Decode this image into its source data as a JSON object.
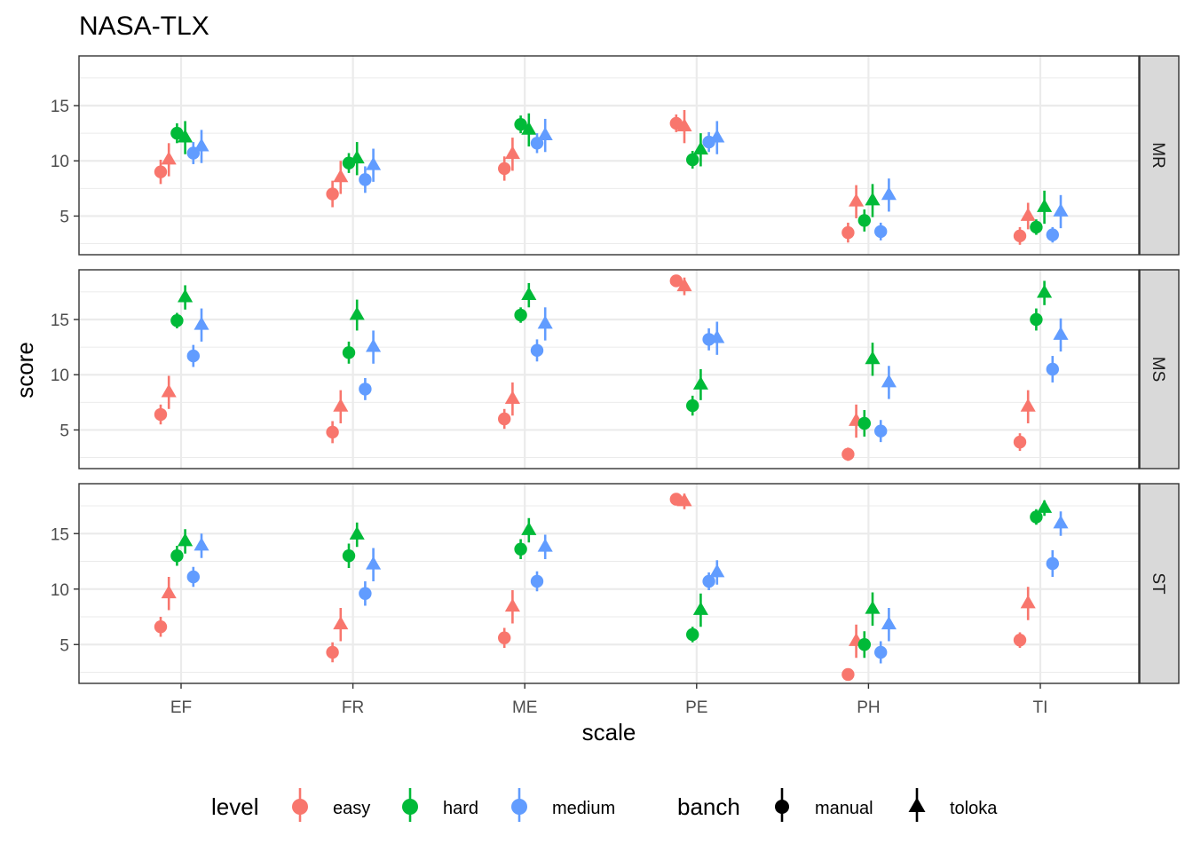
{
  "chart_data": {
    "type": "scatter",
    "title": "NASA-TLX",
    "xlabel": "scale",
    "ylabel": "score",
    "ylim": [
      1.5,
      19.5
    ],
    "y_ticks": [
      5,
      10,
      15
    ],
    "grid": true,
    "categories": [
      "EF",
      "FR",
      "ME",
      "PE",
      "PH",
      "TI"
    ],
    "facets": [
      "MR",
      "MS",
      "ST"
    ],
    "legend": {
      "position": "bottom",
      "level": {
        "title": "level",
        "entries": [
          {
            "label": "easy",
            "color": "#F8766D"
          },
          {
            "label": "hard",
            "color": "#00BA38"
          },
          {
            "label": "medium",
            "color": "#619CFF"
          }
        ]
      },
      "banch": {
        "title": "banch",
        "entries": [
          {
            "label": "manual",
            "shape": "circle"
          },
          {
            "label": "toloka",
            "shape": "triangle"
          }
        ]
      }
    },
    "series": [
      {
        "facet": "MR",
        "level": "easy",
        "banch": "manual",
        "y": [
          9.0,
          7.0,
          9.3,
          13.4,
          3.5,
          3.2
        ],
        "lo": [
          7.9,
          5.8,
          8.2,
          12.6,
          2.6,
          2.4
        ],
        "hi": [
          10.1,
          8.2,
          10.4,
          14.2,
          4.4,
          4.0
        ]
      },
      {
        "facet": "MR",
        "level": "easy",
        "banch": "toloka",
        "y": [
          10.1,
          8.5,
          10.6,
          13.1,
          6.3,
          5.0
        ],
        "lo": [
          8.6,
          7.0,
          9.1,
          11.6,
          4.8,
          3.8
        ],
        "hi": [
          11.6,
          10.0,
          12.1,
          14.6,
          7.8,
          6.2
        ]
      },
      {
        "facet": "MR",
        "level": "hard",
        "banch": "manual",
        "y": [
          12.5,
          9.8,
          13.3,
          10.1,
          4.6,
          4.0
        ],
        "lo": [
          11.6,
          8.9,
          12.5,
          9.3,
          3.6,
          3.3
        ],
        "hi": [
          13.4,
          10.7,
          14.1,
          10.9,
          5.6,
          4.7
        ]
      },
      {
        "facet": "MR",
        "level": "hard",
        "banch": "toloka",
        "y": [
          12.1,
          10.2,
          12.8,
          11.0,
          6.4,
          5.8
        ],
        "lo": [
          10.6,
          8.7,
          11.3,
          9.5,
          4.9,
          4.3
        ],
        "hi": [
          13.6,
          11.7,
          14.3,
          12.5,
          7.9,
          7.3
        ]
      },
      {
        "facet": "MR",
        "level": "medium",
        "banch": "manual",
        "y": [
          10.7,
          8.3,
          11.6,
          11.7,
          3.6,
          3.3
        ],
        "lo": [
          9.7,
          7.1,
          10.7,
          10.8,
          2.8,
          2.6
        ],
        "hi": [
          11.7,
          9.5,
          12.5,
          12.6,
          4.4,
          4.0
        ]
      },
      {
        "facet": "MR",
        "level": "medium",
        "banch": "toloka",
        "y": [
          11.3,
          9.6,
          12.3,
          12.1,
          6.9,
          5.4
        ],
        "lo": [
          9.8,
          8.1,
          10.8,
          10.6,
          5.4,
          3.9
        ],
        "hi": [
          12.8,
          11.1,
          13.8,
          13.6,
          8.4,
          6.9
        ]
      },
      {
        "facet": "MS",
        "level": "easy",
        "banch": "manual",
        "y": [
          6.4,
          4.8,
          6.0,
          18.5,
          2.8,
          3.9
        ],
        "lo": [
          5.5,
          3.8,
          5.1,
          18.1,
          2.2,
          3.1
        ],
        "hi": [
          7.3,
          5.8,
          6.9,
          18.9,
          3.4,
          4.7
        ]
      },
      {
        "facet": "MS",
        "level": "easy",
        "banch": "toloka",
        "y": [
          8.4,
          7.1,
          7.8,
          18.0,
          5.8,
          7.1
        ],
        "lo": [
          6.9,
          5.6,
          6.3,
          17.2,
          4.3,
          5.6
        ],
        "hi": [
          9.9,
          8.6,
          9.3,
          18.8,
          7.3,
          8.6
        ]
      },
      {
        "facet": "MS",
        "level": "hard",
        "banch": "manual",
        "y": [
          14.9,
          12.0,
          15.4,
          7.2,
          5.6,
          15.0
        ],
        "lo": [
          14.2,
          11.0,
          14.7,
          6.3,
          4.4,
          14.0
        ],
        "hi": [
          15.6,
          13.0,
          16.1,
          8.1,
          6.8,
          16.0
        ]
      },
      {
        "facet": "MS",
        "level": "hard",
        "banch": "toloka",
        "y": [
          17.0,
          15.4,
          17.2,
          9.1,
          11.4,
          17.4
        ],
        "lo": [
          15.9,
          14.0,
          16.1,
          7.7,
          9.9,
          16.3
        ],
        "hi": [
          18.1,
          16.8,
          18.3,
          10.5,
          12.9,
          18.5
        ]
      },
      {
        "facet": "MS",
        "level": "medium",
        "banch": "manual",
        "y": [
          11.7,
          8.7,
          12.2,
          13.2,
          4.9,
          10.5
        ],
        "lo": [
          10.7,
          7.7,
          11.2,
          12.2,
          3.9,
          9.3
        ],
        "hi": [
          12.7,
          9.7,
          13.2,
          14.2,
          5.9,
          11.7
        ]
      },
      {
        "facet": "MS",
        "level": "medium",
        "banch": "toloka",
        "y": [
          14.5,
          12.5,
          14.6,
          13.3,
          9.3,
          13.6
        ],
        "lo": [
          13.0,
          11.0,
          13.1,
          11.8,
          7.8,
          12.1
        ],
        "hi": [
          16.0,
          14.0,
          16.1,
          14.8,
          10.8,
          15.1
        ]
      },
      {
        "facet": "ST",
        "level": "easy",
        "banch": "manual",
        "y": [
          6.6,
          4.3,
          5.6,
          18.1,
          2.3,
          5.4
        ],
        "lo": [
          5.7,
          3.4,
          4.7,
          17.8,
          1.9,
          4.7
        ],
        "hi": [
          7.5,
          5.2,
          6.5,
          18.4,
          2.7,
          6.1
        ]
      },
      {
        "facet": "ST",
        "level": "easy",
        "banch": "toloka",
        "y": [
          9.6,
          6.8,
          8.4,
          17.9,
          5.3,
          8.7
        ],
        "lo": [
          8.1,
          5.3,
          6.9,
          17.2,
          3.8,
          7.2
        ],
        "hi": [
          11.1,
          8.3,
          9.9,
          18.6,
          6.8,
          10.2
        ]
      },
      {
        "facet": "ST",
        "level": "hard",
        "banch": "manual",
        "y": [
          13.0,
          13.0,
          13.6,
          5.9,
          5.0,
          16.5
        ],
        "lo": [
          12.1,
          11.9,
          12.7,
          5.2,
          3.8,
          15.8
        ],
        "hi": [
          13.9,
          14.1,
          14.5,
          6.6,
          6.2,
          17.2
        ]
      },
      {
        "facet": "ST",
        "level": "hard",
        "banch": "toloka",
        "y": [
          14.3,
          14.9,
          15.3,
          8.1,
          8.2,
          17.3
        ],
        "lo": [
          13.2,
          13.8,
          14.2,
          6.6,
          6.7,
          16.6
        ],
        "hi": [
          15.4,
          16.0,
          16.4,
          9.6,
          9.7,
          18.0
        ]
      },
      {
        "facet": "ST",
        "level": "medium",
        "banch": "manual",
        "y": [
          11.1,
          9.6,
          10.7,
          10.7,
          4.3,
          12.3
        ],
        "lo": [
          10.2,
          8.5,
          9.8,
          9.9,
          3.3,
          11.1
        ],
        "hi": [
          12.0,
          10.7,
          11.6,
          11.5,
          5.3,
          13.5
        ]
      },
      {
        "facet": "ST",
        "level": "medium",
        "banch": "toloka",
        "y": [
          13.9,
          12.2,
          13.8,
          11.5,
          6.8,
          15.9
        ],
        "lo": [
          12.8,
          10.7,
          12.7,
          10.4,
          5.3,
          14.8
        ],
        "hi": [
          15.0,
          13.7,
          14.9,
          12.6,
          8.3,
          17.0
        ]
      }
    ]
  }
}
